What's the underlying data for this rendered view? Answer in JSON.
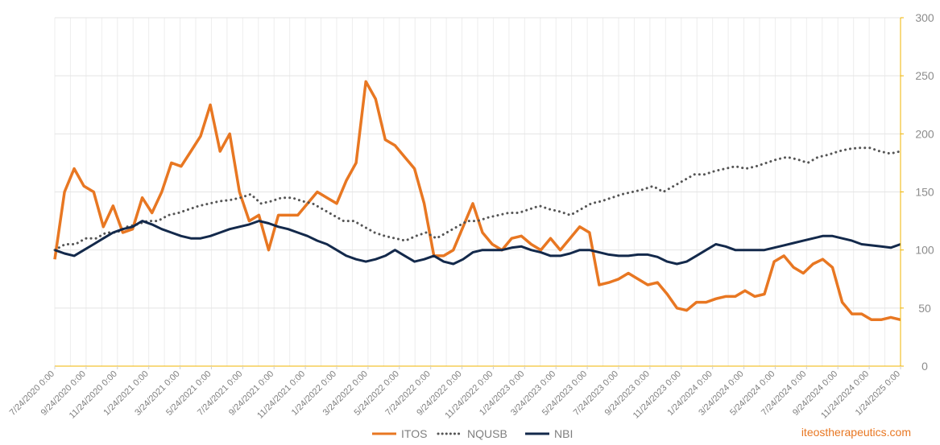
{
  "chart_data": {
    "type": "line",
    "x_ticks": [
      "7/24/2020 0:00",
      "9/24/2020 0:00",
      "11/24/2020 0:00",
      "1/24/2021 0:00",
      "3/24/2021 0:00",
      "5/24/2021 0:00",
      "7/24/2021 0:00",
      "9/24/2021 0:00",
      "11/24/2021 0:00",
      "1/24/2022 0:00",
      "3/24/2022 0:00",
      "5/24/2022 0:00",
      "7/24/2022 0:00",
      "9/24/2022 0:00",
      "11/24/2022 0:00",
      "1/24/2023 0:00",
      "3/24/2023 0:00",
      "5/24/2023 0:00",
      "7/24/2023 0:00",
      "9/24/2023 0:00",
      "11/24/2023 0:00",
      "1/24/2024 0:00",
      "3/24/2024 0:00",
      "5/24/2024 0:00",
      "7/24/2024 0:00",
      "9/24/2024 0:00",
      "11/24/2024 0:00",
      "1/24/2025 0:00"
    ],
    "y_ticks": [
      0,
      50,
      100,
      150,
      200,
      250,
      300
    ],
    "ylim": [
      0,
      300
    ],
    "y_axis_side": "right",
    "grid": true,
    "legend_position": "bottom",
    "series": [
      {
        "name": "ITOS",
        "color": "#e87722",
        "style": "solid",
        "values": [
          92,
          150,
          170,
          155,
          150,
          120,
          138,
          115,
          118,
          145,
          132,
          150,
          175,
          172,
          185,
          198,
          225,
          185,
          200,
          150,
          125,
          130,
          100,
          130,
          130,
          130,
          140,
          150,
          145,
          140,
          160,
          175,
          245,
          230,
          195,
          190,
          180,
          170,
          140,
          95,
          95,
          100,
          120,
          140,
          115,
          105,
          100,
          110,
          112,
          105,
          100,
          110,
          100,
          110,
          120,
          115,
          70,
          72,
          75,
          80,
          75,
          70,
          72,
          62,
          50,
          48,
          55,
          55,
          58,
          60,
          60,
          65,
          60,
          62,
          90,
          95,
          85,
          80,
          88,
          92,
          85,
          55,
          45,
          45,
          40,
          40,
          42,
          40
        ]
      },
      {
        "name": "NQUSB",
        "color": "#555555",
        "style": "dotted",
        "values": [
          100,
          105,
          105,
          110,
          110,
          115,
          115,
          120,
          122,
          125,
          125,
          130,
          132,
          135,
          138,
          140,
          142,
          143,
          145,
          148,
          140,
          142,
          145,
          145,
          142,
          140,
          135,
          130,
          125,
          125,
          120,
          115,
          112,
          110,
          108,
          112,
          115,
          110,
          115,
          120,
          125,
          125,
          128,
          130,
          132,
          132,
          135,
          138,
          135,
          133,
          130,
          135,
          140,
          142,
          145,
          148,
          150,
          152,
          155,
          150,
          155,
          160,
          165,
          165,
          168,
          170,
          172,
          170,
          172,
          175,
          178,
          180,
          178,
          175,
          180,
          182,
          185,
          187,
          188,
          188,
          185,
          183,
          185
        ]
      },
      {
        "name": "NBI",
        "color": "#13294b",
        "style": "solid",
        "values": [
          100,
          97,
          95,
          100,
          105,
          110,
          115,
          118,
          120,
          125,
          122,
          118,
          115,
          112,
          110,
          110,
          112,
          115,
          118,
          120,
          122,
          125,
          123,
          120,
          118,
          115,
          112,
          108,
          105,
          100,
          95,
          92,
          90,
          92,
          95,
          100,
          95,
          90,
          92,
          95,
          90,
          88,
          92,
          98,
          100,
          100,
          100,
          102,
          103,
          100,
          98,
          95,
          95,
          97,
          100,
          100,
          98,
          96,
          95,
          95,
          96,
          96,
          94,
          90,
          88,
          90,
          95,
          100,
          105,
          103,
          100,
          100,
          100,
          100,
          102,
          104,
          106,
          108,
          110,
          112,
          112,
          110,
          108,
          105,
          104,
          103,
          102,
          105
        ]
      }
    ]
  },
  "legend": [
    "ITOS",
    "NQUSB",
    "NBI"
  ],
  "watermark": "iteostherapeutics.com"
}
